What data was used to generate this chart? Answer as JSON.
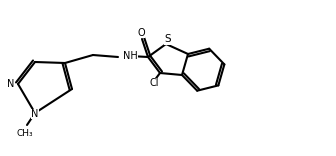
{
  "bg": "#ffffff",
  "lw": 1.5,
  "lc": "#000000",
  "atoms": {
    "N_label": "N",
    "N2_label": "N",
    "NH_label": "NH",
    "S_label": "S",
    "Cl_label": "Cl",
    "O_label": "O",
    "CH3_label": "CH₃",
    "N_methyl": "N"
  },
  "font_size": 7
}
